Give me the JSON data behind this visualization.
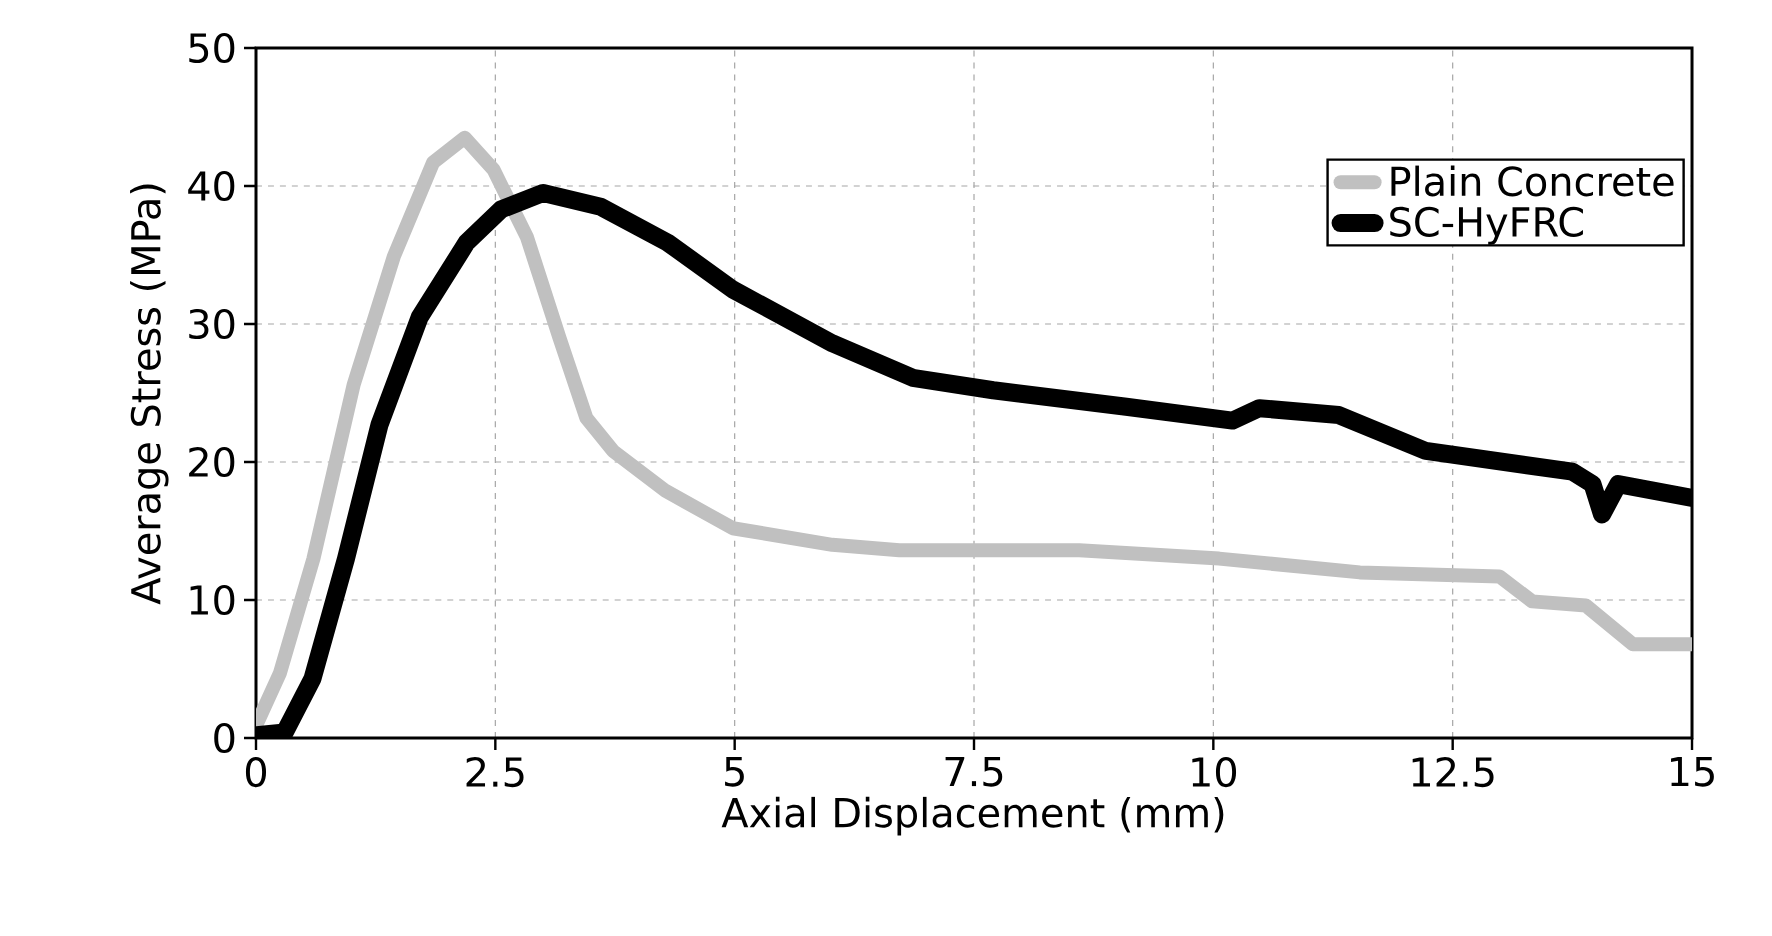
{
  "chart_data": {
    "type": "line",
    "xlabel": "Axial Displacement (mm)",
    "ylabel": "Average Stress (MPa)",
    "xlim": [
      0,
      15
    ],
    "ylim": [
      0,
      50
    ],
    "xticks": [
      0,
      2.5,
      5,
      7.5,
      10,
      12.5,
      15
    ],
    "yticks": [
      0,
      10,
      20,
      30,
      40,
      50
    ],
    "grid": true,
    "legend": "top right",
    "marker": "none",
    "line_style": "solid",
    "series": [
      {
        "name": "Plain Concrete",
        "color": "#c0c0c0",
        "x": [
          0,
          0.25,
          0.6,
          1.02,
          1.44,
          1.85,
          2.18,
          2.48,
          2.83,
          3.17,
          3.45,
          3.73,
          4.28,
          4.98,
          6.02,
          6.72,
          8.6,
          10.06,
          11.53,
          12.99,
          13.33,
          13.89,
          14.38,
          15
        ],
        "values": [
          0.9,
          4.7,
          13,
          25.6,
          34.9,
          41.7,
          43.5,
          41.2,
          36.3,
          29,
          23.2,
          20.8,
          17.9,
          15.2,
          14,
          13.6,
          13.6,
          13,
          12,
          11.7,
          9.9,
          9.6,
          6.8,
          6.8
        ]
      },
      {
        "name": "SC-HyFRC",
        "color": "#000000",
        "x": [
          0,
          0.3,
          0.59,
          0.94,
          1.29,
          1.71,
          2.2,
          2.56,
          3,
          3.6,
          4.3,
          4.98,
          6.02,
          6.86,
          7.7,
          9.09,
          10.2,
          10.48,
          11.31,
          12.22,
          13.75,
          13.96,
          14.06,
          14.23,
          15
        ],
        "values": [
          0.2,
          0.4,
          4.3,
          13,
          22.7,
          30.5,
          35.9,
          38.3,
          39.5,
          38.5,
          35.9,
          32.5,
          28.6,
          26.1,
          25.2,
          24,
          23,
          23.9,
          23.4,
          20.8,
          19.3,
          18.4,
          16.2,
          18.4,
          17.4
        ]
      }
    ]
  }
}
